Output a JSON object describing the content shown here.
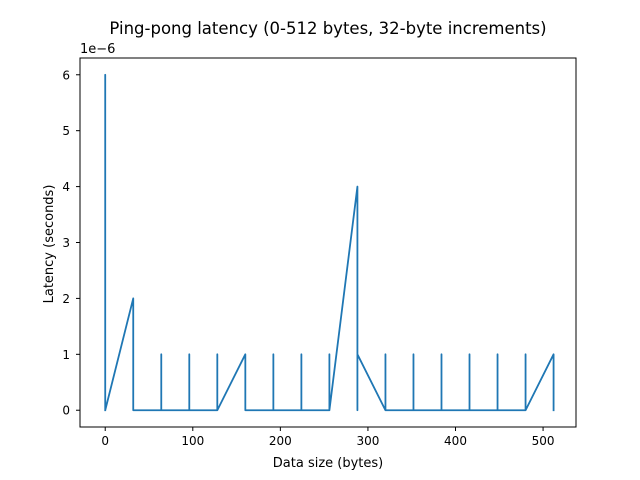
{
  "chart_data": {
    "type": "line",
    "title": "Ping-pong latency (0-512 bytes, 32-byte increments)",
    "xlabel": "Data size (bytes)",
    "ylabel": "Latency (seconds)",
    "y_offset_label": "1e−6",
    "xlim": [
      -28.8,
      537.6
    ],
    "ylim": [
      -0.3,
      6.3
    ],
    "y_scale_factor": 1e-06,
    "xticks": [
      0,
      100,
      200,
      300,
      400,
      500
    ],
    "yticks": [
      0,
      1,
      2,
      3,
      4,
      5,
      6
    ],
    "grid": false,
    "series": [
      {
        "color": "#1f77b4",
        "x": [
          0,
          0,
          0,
          32,
          32,
          32,
          64,
          64,
          64,
          96,
          96,
          96,
          128,
          128,
          128,
          160,
          160,
          160,
          192,
          192,
          192,
          224,
          224,
          224,
          256,
          256,
          256,
          288,
          288,
          288,
          320,
          320,
          320,
          352,
          352,
          352,
          384,
          384,
          384,
          416,
          416,
          416,
          448,
          448,
          448,
          480,
          480,
          480,
          512,
          512
        ],
        "y": [
          0,
          6,
          0,
          2,
          0,
          0,
          0,
          1,
          0,
          0,
          1,
          0,
          0,
          1,
          0,
          1,
          0,
          0,
          0,
          1,
          0,
          0,
          1,
          0,
          0,
          1,
          0,
          4,
          0,
          1,
          0,
          1,
          0,
          0,
          1,
          0,
          0,
          1,
          0,
          0,
          1,
          0,
          0,
          1,
          0,
          0,
          1,
          0,
          1,
          0
        ]
      }
    ]
  }
}
